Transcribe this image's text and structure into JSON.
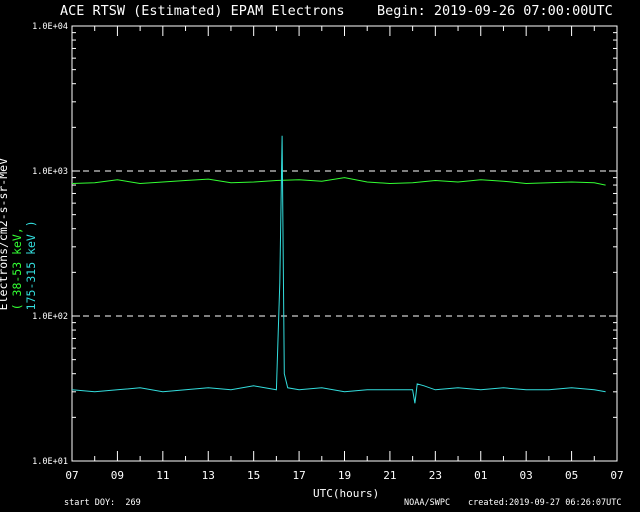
{
  "title_left": "ACE RTSW (Estimated) EPAM Electrons",
  "title_right": "Begin: 2019-09-26 07:00:00UTC",
  "ylabel_part1": "Electrons/cm2-s-sr-MeV",
  "ylabel_part2": "( 38-53 keV,",
  "ylabel_part3": "175-315 keV )",
  "xlabel": "UTC(hours)",
  "start_doy": "start DOY:  269",
  "source": "NOAA/SWPC",
  "created": "created:2019-09-27 06:26:07UTC",
  "colors": {
    "low_energy": "#33ff33",
    "high_energy": "#33dddd",
    "axes": "#ffffff",
    "background": "#000000"
  },
  "chart_data": {
    "type": "line",
    "yscale": "log",
    "ylim": [
      10,
      10000
    ],
    "xlim": [
      0,
      24
    ],
    "y_ticks": [
      "1.0E+01",
      "1.0E+02",
      "1.0E+03",
      "1.0E+04"
    ],
    "x_ticks": [
      "07",
      "09",
      "11",
      "13",
      "15",
      "17",
      "19",
      "21",
      "23",
      "01",
      "03",
      "05",
      "07"
    ],
    "reference_lines": [
      100,
      1000
    ],
    "series": [
      {
        "color": "#33ff33",
        "x": [
          0,
          1,
          2,
          3,
          4,
          5,
          6,
          7,
          8,
          9,
          10,
          11,
          12,
          13,
          14,
          15,
          16,
          17,
          18,
          19,
          20,
          21,
          22,
          23,
          23.5
        ],
        "y": [
          820,
          830,
          870,
          820,
          840,
          860,
          880,
          830,
          840,
          860,
          870,
          850,
          900,
          840,
          820,
          830,
          860,
          840,
          870,
          850,
          820,
          830,
          840,
          830,
          800
        ]
      },
      {
        "color": "#33dddd",
        "x": [
          0,
          1,
          2,
          3,
          4,
          5,
          6,
          7,
          8,
          9,
          9.15,
          9.25,
          9.35,
          9.5,
          10,
          11,
          12,
          13,
          14,
          15,
          15.1,
          15.2,
          15.5,
          16,
          17,
          18,
          19,
          20,
          21,
          22,
          23,
          23.5
        ],
        "y": [
          31,
          30,
          31,
          32,
          30,
          31,
          32,
          31,
          33,
          31,
          170,
          1750,
          40,
          32,
          31,
          32,
          30,
          31,
          31,
          31,
          25,
          34,
          33,
          31,
          32,
          31,
          32,
          31,
          31,
          32,
          31,
          30
        ]
      }
    ]
  }
}
